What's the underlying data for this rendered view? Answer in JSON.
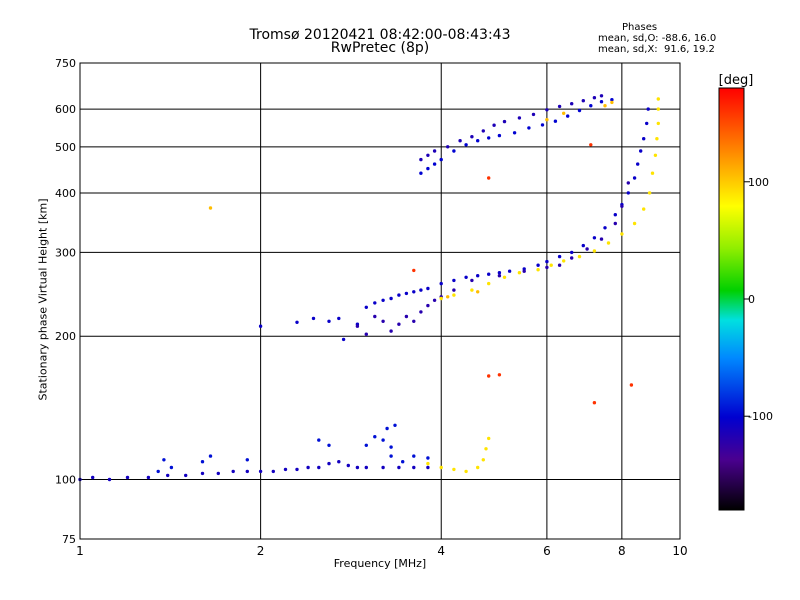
{
  "chart_data": {
    "type": "scatter",
    "title": "Tromsø 20120421 08:42:00-08:43:43",
    "subtitle": "RwPretec (8p)",
    "phases": {
      "title": "Phases",
      "o_text": "mean, sd,O: -88.6, 16.0",
      "x_text": "mean, sd,X:  91.6, 19.2"
    },
    "xlabel": "Frequency [MHz]",
    "ylabel": "Stationary phase Virtual Height [km]",
    "x_scale": "log",
    "y_scale": "log",
    "xlim": [
      1,
      10
    ],
    "ylim": [
      75,
      750
    ],
    "x_ticks": [
      1,
      2,
      4,
      6,
      8,
      10
    ],
    "x_tick_labels": [
      "1",
      "2",
      "4",
      "6",
      "8",
      "10"
    ],
    "y_ticks": [
      75,
      100,
      200,
      300,
      400,
      500,
      600,
      750
    ],
    "y_tick_labels": [
      "75",
      "100",
      "200",
      "300",
      "400",
      "500",
      "600",
      "750"
    ],
    "grid": true,
    "colorbar": {
      "label": "[deg]",
      "range": [
        -180,
        180
      ],
      "ticks": [
        100,
        0,
        -100
      ],
      "tick_labels": [
        "100",
        "0",
        "-100"
      ]
    },
    "series": [
      {
        "phase": -110,
        "points": [
          [
            1.0,
            100
          ],
          [
            1.05,
            101
          ],
          [
            1.12,
            100
          ],
          [
            1.2,
            101
          ],
          [
            1.3,
            101
          ],
          [
            1.4,
            102
          ],
          [
            1.5,
            102
          ],
          [
            1.6,
            103
          ],
          [
            1.7,
            103
          ],
          [
            1.8,
            104
          ],
          [
            1.9,
            104
          ],
          [
            2.0,
            104
          ],
          [
            2.1,
            104
          ],
          [
            2.2,
            105
          ],
          [
            2.3,
            105
          ],
          [
            2.4,
            106
          ],
          [
            2.5,
            106
          ],
          [
            2.6,
            108
          ],
          [
            2.7,
            109
          ],
          [
            2.8,
            107
          ],
          [
            2.9,
            106
          ],
          [
            3.0,
            106
          ],
          [
            3.2,
            106
          ],
          [
            3.4,
            106
          ],
          [
            3.6,
            106
          ],
          [
            3.8,
            106
          ]
        ]
      },
      {
        "phase": -95,
        "points": [
          [
            1.35,
            104
          ],
          [
            1.38,
            110
          ],
          [
            1.42,
            106
          ],
          [
            1.6,
            109
          ],
          [
            1.65,
            112
          ],
          [
            1.9,
            110
          ],
          [
            2.5,
            121
          ],
          [
            2.6,
            118
          ],
          [
            3.0,
            118
          ],
          [
            3.1,
            123
          ],
          [
            3.2,
            121
          ],
          [
            3.3,
            117
          ],
          [
            3.25,
            128
          ],
          [
            3.35,
            130
          ],
          [
            3.3,
            112
          ],
          [
            3.45,
            109
          ],
          [
            3.6,
            112
          ],
          [
            3.8,
            111
          ]
        ]
      },
      {
        "phase": -105,
        "points": [
          [
            2.0,
            210
          ],
          [
            2.3,
            214
          ],
          [
            2.45,
            218
          ],
          [
            2.6,
            215
          ],
          [
            2.7,
            218
          ],
          [
            2.75,
            197
          ],
          [
            2.9,
            212
          ],
          [
            3.0,
            230
          ],
          [
            3.1,
            235
          ],
          [
            3.2,
            238
          ],
          [
            3.3,
            240
          ],
          [
            3.4,
            244
          ],
          [
            3.5,
            246
          ],
          [
            3.6,
            248
          ],
          [
            3.7,
            250
          ],
          [
            3.8,
            252
          ],
          [
            4.0,
            258
          ],
          [
            4.2,
            262
          ],
          [
            4.4,
            266
          ],
          [
            4.6,
            268
          ],
          [
            4.8,
            270
          ],
          [
            5.0,
            272
          ],
          [
            5.2,
            274
          ],
          [
            5.5,
            277
          ],
          [
            5.8,
            282
          ],
          [
            6.0,
            287
          ],
          [
            6.3,
            294
          ],
          [
            6.6,
            300
          ],
          [
            6.9,
            310
          ],
          [
            7.2,
            322
          ],
          [
            7.5,
            338
          ],
          [
            7.8,
            360
          ],
          [
            8.0,
            378
          ],
          [
            8.2,
            400
          ],
          [
            8.4,
            430
          ],
          [
            8.5,
            460
          ],
          [
            8.6,
            490
          ],
          [
            8.7,
            520
          ],
          [
            8.8,
            560
          ],
          [
            8.85,
            600
          ]
        ]
      },
      {
        "phase": -120,
        "points": [
          [
            2.9,
            210
          ],
          [
            3.0,
            202
          ],
          [
            3.1,
            220
          ],
          [
            3.2,
            215
          ],
          [
            3.3,
            205
          ],
          [
            3.4,
            212
          ],
          [
            3.5,
            220
          ],
          [
            3.6,
            215
          ],
          [
            3.7,
            225
          ],
          [
            3.8,
            232
          ],
          [
            3.9,
            238
          ],
          [
            4.0,
            242
          ],
          [
            4.2,
            250
          ],
          [
            4.5,
            262
          ],
          [
            5.0,
            268
          ],
          [
            5.5,
            274
          ],
          [
            6.0,
            279
          ],
          [
            6.3,
            282
          ],
          [
            6.6,
            292
          ],
          [
            7.0,
            305
          ],
          [
            7.4,
            320
          ],
          [
            7.8,
            345
          ],
          [
            8.0,
            375
          ],
          [
            8.2,
            420
          ]
        ]
      },
      {
        "phase": -100,
        "points": [
          [
            3.7,
            440
          ],
          [
            3.8,
            450
          ],
          [
            3.9,
            460
          ],
          [
            4.0,
            470
          ],
          [
            4.2,
            490
          ],
          [
            4.4,
            505
          ],
          [
            4.6,
            515
          ],
          [
            4.8,
            522
          ],
          [
            5.0,
            528
          ],
          [
            5.3,
            535
          ],
          [
            5.6,
            548
          ],
          [
            5.9,
            556
          ],
          [
            6.2,
            566
          ],
          [
            6.5,
            580
          ],
          [
            6.8,
            596
          ],
          [
            7.1,
            610
          ],
          [
            7.4,
            622
          ],
          [
            7.7,
            628
          ]
        ]
      },
      {
        "phase": -115,
        "points": [
          [
            3.7,
            470
          ],
          [
            3.8,
            480
          ],
          [
            3.9,
            490
          ],
          [
            4.1,
            500
          ],
          [
            4.3,
            515
          ],
          [
            4.5,
            525
          ],
          [
            4.7,
            540
          ],
          [
            4.9,
            555
          ],
          [
            5.1,
            565
          ],
          [
            5.4,
            575
          ],
          [
            5.7,
            585
          ],
          [
            6.0,
            598
          ],
          [
            6.3,
            608
          ],
          [
            6.6,
            616
          ],
          [
            6.9,
            625
          ],
          [
            7.2,
            634
          ],
          [
            7.4,
            640
          ]
        ]
      },
      {
        "phase": 90,
        "points": [
          [
            3.8,
            108
          ],
          [
            4.0,
            106
          ],
          [
            4.2,
            105
          ],
          [
            4.4,
            104
          ],
          [
            4.6,
            106
          ],
          [
            4.7,
            110
          ],
          [
            4.75,
            116
          ],
          [
            4.8,
            122
          ],
          [
            4.0,
            240
          ],
          [
            4.2,
            244
          ],
          [
            4.5,
            250
          ],
          [
            4.8,
            258
          ],
          [
            5.1,
            266
          ],
          [
            5.4,
            272
          ],
          [
            5.8,
            276
          ],
          [
            6.1,
            282
          ],
          [
            6.4,
            288
          ],
          [
            6.8,
            294
          ],
          [
            7.2,
            302
          ],
          [
            7.6,
            314
          ],
          [
            8.0,
            328
          ],
          [
            8.4,
            345
          ],
          [
            8.7,
            370
          ],
          [
            8.9,
            400
          ],
          [
            9.0,
            440
          ],
          [
            9.1,
            480
          ],
          [
            9.15,
            520
          ],
          [
            9.2,
            560
          ],
          [
            9.2,
            600
          ],
          [
            9.2,
            630
          ]
        ]
      },
      {
        "phase": 105,
        "points": [
          [
            1.65,
            372
          ],
          [
            4.1,
            242
          ],
          [
            4.6,
            248
          ],
          [
            6.0,
            570
          ],
          [
            6.4,
            588
          ],
          [
            7.5,
            610
          ],
          [
            7.7,
            620
          ]
        ]
      },
      {
        "phase": 160,
        "points": [
          [
            4.8,
            165
          ],
          [
            5.0,
            166
          ],
          [
            7.2,
            145
          ],
          [
            8.3,
            158
          ],
          [
            3.6,
            275
          ],
          [
            4.8,
            430
          ],
          [
            7.1,
            505
          ]
        ]
      }
    ]
  }
}
